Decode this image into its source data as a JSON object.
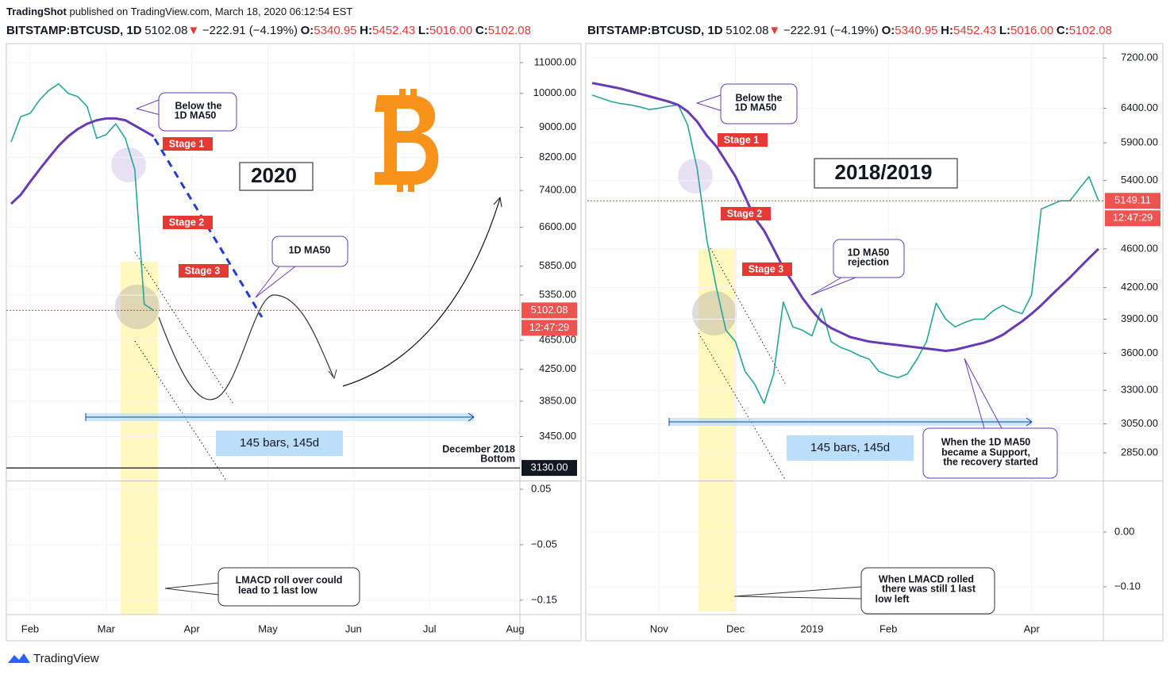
{
  "header": {
    "publisher": "TradingShot",
    "published": "published on TradingView.com, March 18, 2020 06:12:54 EST"
  },
  "footer": {
    "brand": "TradingView"
  },
  "chart_data": [
    {
      "type": "line",
      "log_scale": true,
      "grid": true,
      "quote": {
        "symbol": "BITSTAMP:BTCUSD, 1D",
        "last": "5102.08",
        "arrow": "▼",
        "change": "−222.91 (−4.19%)",
        "o_label": "O:",
        "o": "5340.95",
        "h_label": "H:",
        "h": "5452.43",
        "l_label": "L:",
        "l": "5016.00",
        "c_label": "C:",
        "c": "5102.08"
      },
      "categories": [
        null,
        null,
        "Feb",
        null,
        null,
        null,
        null,
        null,
        null,
        null,
        "Mar",
        null,
        null,
        null,
        null,
        null,
        null,
        null,
        null,
        "Apr",
        null,
        null,
        null,
        null,
        null,
        null,
        null,
        "May",
        null,
        null,
        null,
        null,
        null,
        null,
        null,
        null,
        "Jun",
        null,
        null,
        null,
        null,
        null,
        null,
        null,
        "Jul",
        null,
        null,
        null,
        null,
        null,
        null,
        null,
        null,
        "Aug"
      ],
      "series": [
        {
          "color": "#26a69a",
          "values": [
            8600,
            9300,
            9400,
            9800,
            10100,
            10300,
            10000,
            9900,
            9600,
            8700,
            8800,
            9100,
            8700,
            7900,
            5200,
            5102.08,
            null,
            null,
            null,
            null,
            null,
            null,
            null,
            null,
            null,
            null,
            null,
            null,
            null,
            null,
            null,
            null,
            null,
            null,
            null,
            null,
            null,
            null,
            null,
            null,
            null,
            null,
            null,
            null,
            null,
            null,
            null,
            null,
            null,
            null,
            null,
            null,
            null,
            null
          ]
        },
        {
          "color": "#673ab7",
          "values": [
            7100,
            7300,
            7600,
            7900,
            8200,
            8500,
            8750,
            8950,
            9100,
            9200,
            9250,
            9250,
            9200,
            9050,
            8900,
            8750,
            null,
            null,
            null,
            null,
            null,
            null,
            null,
            null,
            null,
            null,
            null,
            null,
            null,
            null,
            null,
            null,
            null,
            null,
            null,
            null,
            null,
            null,
            null,
            null,
            null,
            null,
            null,
            null,
            null,
            null,
            null,
            null,
            null,
            null,
            null,
            null,
            null,
            null
          ]
        }
      ],
      "ylim": [
        3010,
        11610
      ],
      "yticks": [
        {
          "value": 11000,
          "label": "11000.00"
        },
        {
          "value": 10000,
          "label": "10000.00"
        },
        {
          "value": 9000,
          "label": "9000.00"
        },
        {
          "value": 8200,
          "label": "8200.00"
        },
        {
          "value": 7400,
          "label": "7400.00"
        },
        {
          "value": 6600,
          "label": "6600.00"
        },
        {
          "value": 5850,
          "label": "5850.00"
        },
        {
          "value": 5350,
          "label": "5350.00"
        },
        {
          "value": 4650,
          "label": "4650.00"
        },
        {
          "value": 4250,
          "label": "4250.00"
        },
        {
          "value": 3850,
          "label": "3850.00"
        },
        {
          "value": 3450,
          "label": "3450.00"
        }
      ],
      "price_tag": {
        "value": 5102.08,
        "label": "5102.08"
      },
      "countdown": "12:47:29",
      "support": {
        "value": 3130,
        "label": "3130.00"
      },
      "macd": {
        "ylim": [
          -0.176,
          0.0643
        ],
        "yticks": [
          0.05,
          {
            "value": -0.05,
            "label": "−0.05"
          },
          {
            "value": -0.15,
            "label": "−0.15"
          }
        ]
      },
      "annotations": {
        "title": "2020",
        "callout_ma": [
          "Below the",
          "1D MA50"
        ],
        "stage1": "Stage 1",
        "stage2": "Stage 2",
        "stage3": "Stage 3",
        "ma_note": [
          "1D MA50"
        ],
        "bars": "145 bars, 145d",
        "bottom": [
          "December 2018",
          "Bottom"
        ],
        "lmacd": [
          "LMACD roll over could",
          "lead to 1 last low"
        ]
      }
    },
    {
      "type": "line",
      "log_scale": true,
      "grid": true,
      "quote": {
        "symbol": "BITSTAMP:BTCUSD, 1D",
        "last": "5102.08",
        "arrow": "▼",
        "change": "−222.91 (−4.19%)",
        "o_label": "O:",
        "o": "5340.95",
        "h_label": "H:",
        "h": "5452.43",
        "l_label": "L:",
        "l": "5016.00",
        "c_label": "C:",
        "c": "5102.08"
      },
      "categories": [
        null,
        null,
        null,
        null,
        null,
        null,
        null,
        "Nov",
        null,
        null,
        null,
        null,
        null,
        null,
        null,
        "Dec",
        null,
        null,
        null,
        null,
        null,
        null,
        null,
        "2019",
        null,
        null,
        null,
        null,
        null,
        null,
        null,
        "Feb",
        null,
        null,
        null,
        null,
        null,
        null,
        null,
        null,
        null,
        null,
        null,
        null,
        null,
        null,
        "Apr",
        null,
        null,
        null,
        null,
        null,
        null,
        null
      ],
      "series": [
        {
          "color": "#26a69a",
          "values": [
            6600,
            6550,
            6500,
            6470,
            6450,
            6420,
            6380,
            6400,
            6430,
            6450,
            6150,
            5550,
            4700,
            4200,
            3800,
            3700,
            3450,
            3350,
            3200,
            3430,
            4060,
            3830,
            3800,
            3750,
            4000,
            3700,
            3650,
            3620,
            3580,
            3550,
            3450,
            3420,
            3400,
            3430,
            3550,
            3700,
            4050,
            3900,
            3830,
            3870,
            3900,
            3900,
            3980,
            4030,
            3980,
            3950,
            4130,
            5050,
            5100,
            5150,
            5150,
            5300,
            5450,
            5149.11
          ]
        },
        {
          "color": "#673ab7",
          "values": [
            6790,
            6760,
            6730,
            6700,
            6660,
            6620,
            6580,
            6540,
            6500,
            6450,
            6350,
            6200,
            6000,
            5850,
            5650,
            5450,
            5200,
            4950,
            4800,
            4600,
            4400,
            4250,
            4100,
            3980,
            3880,
            3820,
            3780,
            3740,
            3720,
            3700,
            3690,
            3680,
            3670,
            3660,
            3650,
            3640,
            3630,
            3620,
            3630,
            3650,
            3670,
            3690,
            3720,
            3760,
            3820,
            3880,
            3950,
            4030,
            4120,
            4210,
            4300,
            4400,
            4500,
            4600
          ]
        }
      ],
      "ylim": [
        2670,
        7420
      ],
      "yticks": [
        {
          "value": 7200,
          "label": "7200.00"
        },
        {
          "value": 6400,
          "label": "6400.00"
        },
        {
          "value": 5900,
          "label": "5900.00"
        },
        {
          "value": 5400,
          "label": "5400.00"
        },
        {
          "value": 4600,
          "label": "4600.00"
        },
        {
          "value": 4200,
          "label": "4200.00"
        },
        {
          "value": 3900,
          "label": "3900.00"
        },
        {
          "value": 3600,
          "label": "3600.00"
        },
        {
          "value": 3300,
          "label": "3300.00"
        },
        {
          "value": 3050,
          "label": "3050.00"
        },
        {
          "value": 2850,
          "label": "2850.00"
        }
      ],
      "price_tag": {
        "value": 5149.11,
        "label": "5149.11"
      },
      "countdown": "12:47:29",
      "macd": {
        "ylim": [
          -0.1507,
          0.0928
        ],
        "yticks": [
          {
            "value": 0,
            "label": "0.00"
          },
          {
            "value": -0.1,
            "label": "−0.10"
          }
        ]
      },
      "annotations": {
        "title": "2018/2019",
        "callout_ma": [
          "Below the",
          "1D MA50"
        ],
        "stage1": "Stage 1",
        "stage2": "Stage 2",
        "stage3": "Stage 3",
        "ma_note": [
          "1D MA50",
          "rejection"
        ],
        "bars": "145 bars, 145d",
        "support": [
          "When the 1D MA50",
          "became a Support,",
          "the recovery started"
        ],
        "lmacd": [
          "When LMACD rolled",
          "there was still 1 last",
          "low left"
        ]
      }
    }
  ]
}
